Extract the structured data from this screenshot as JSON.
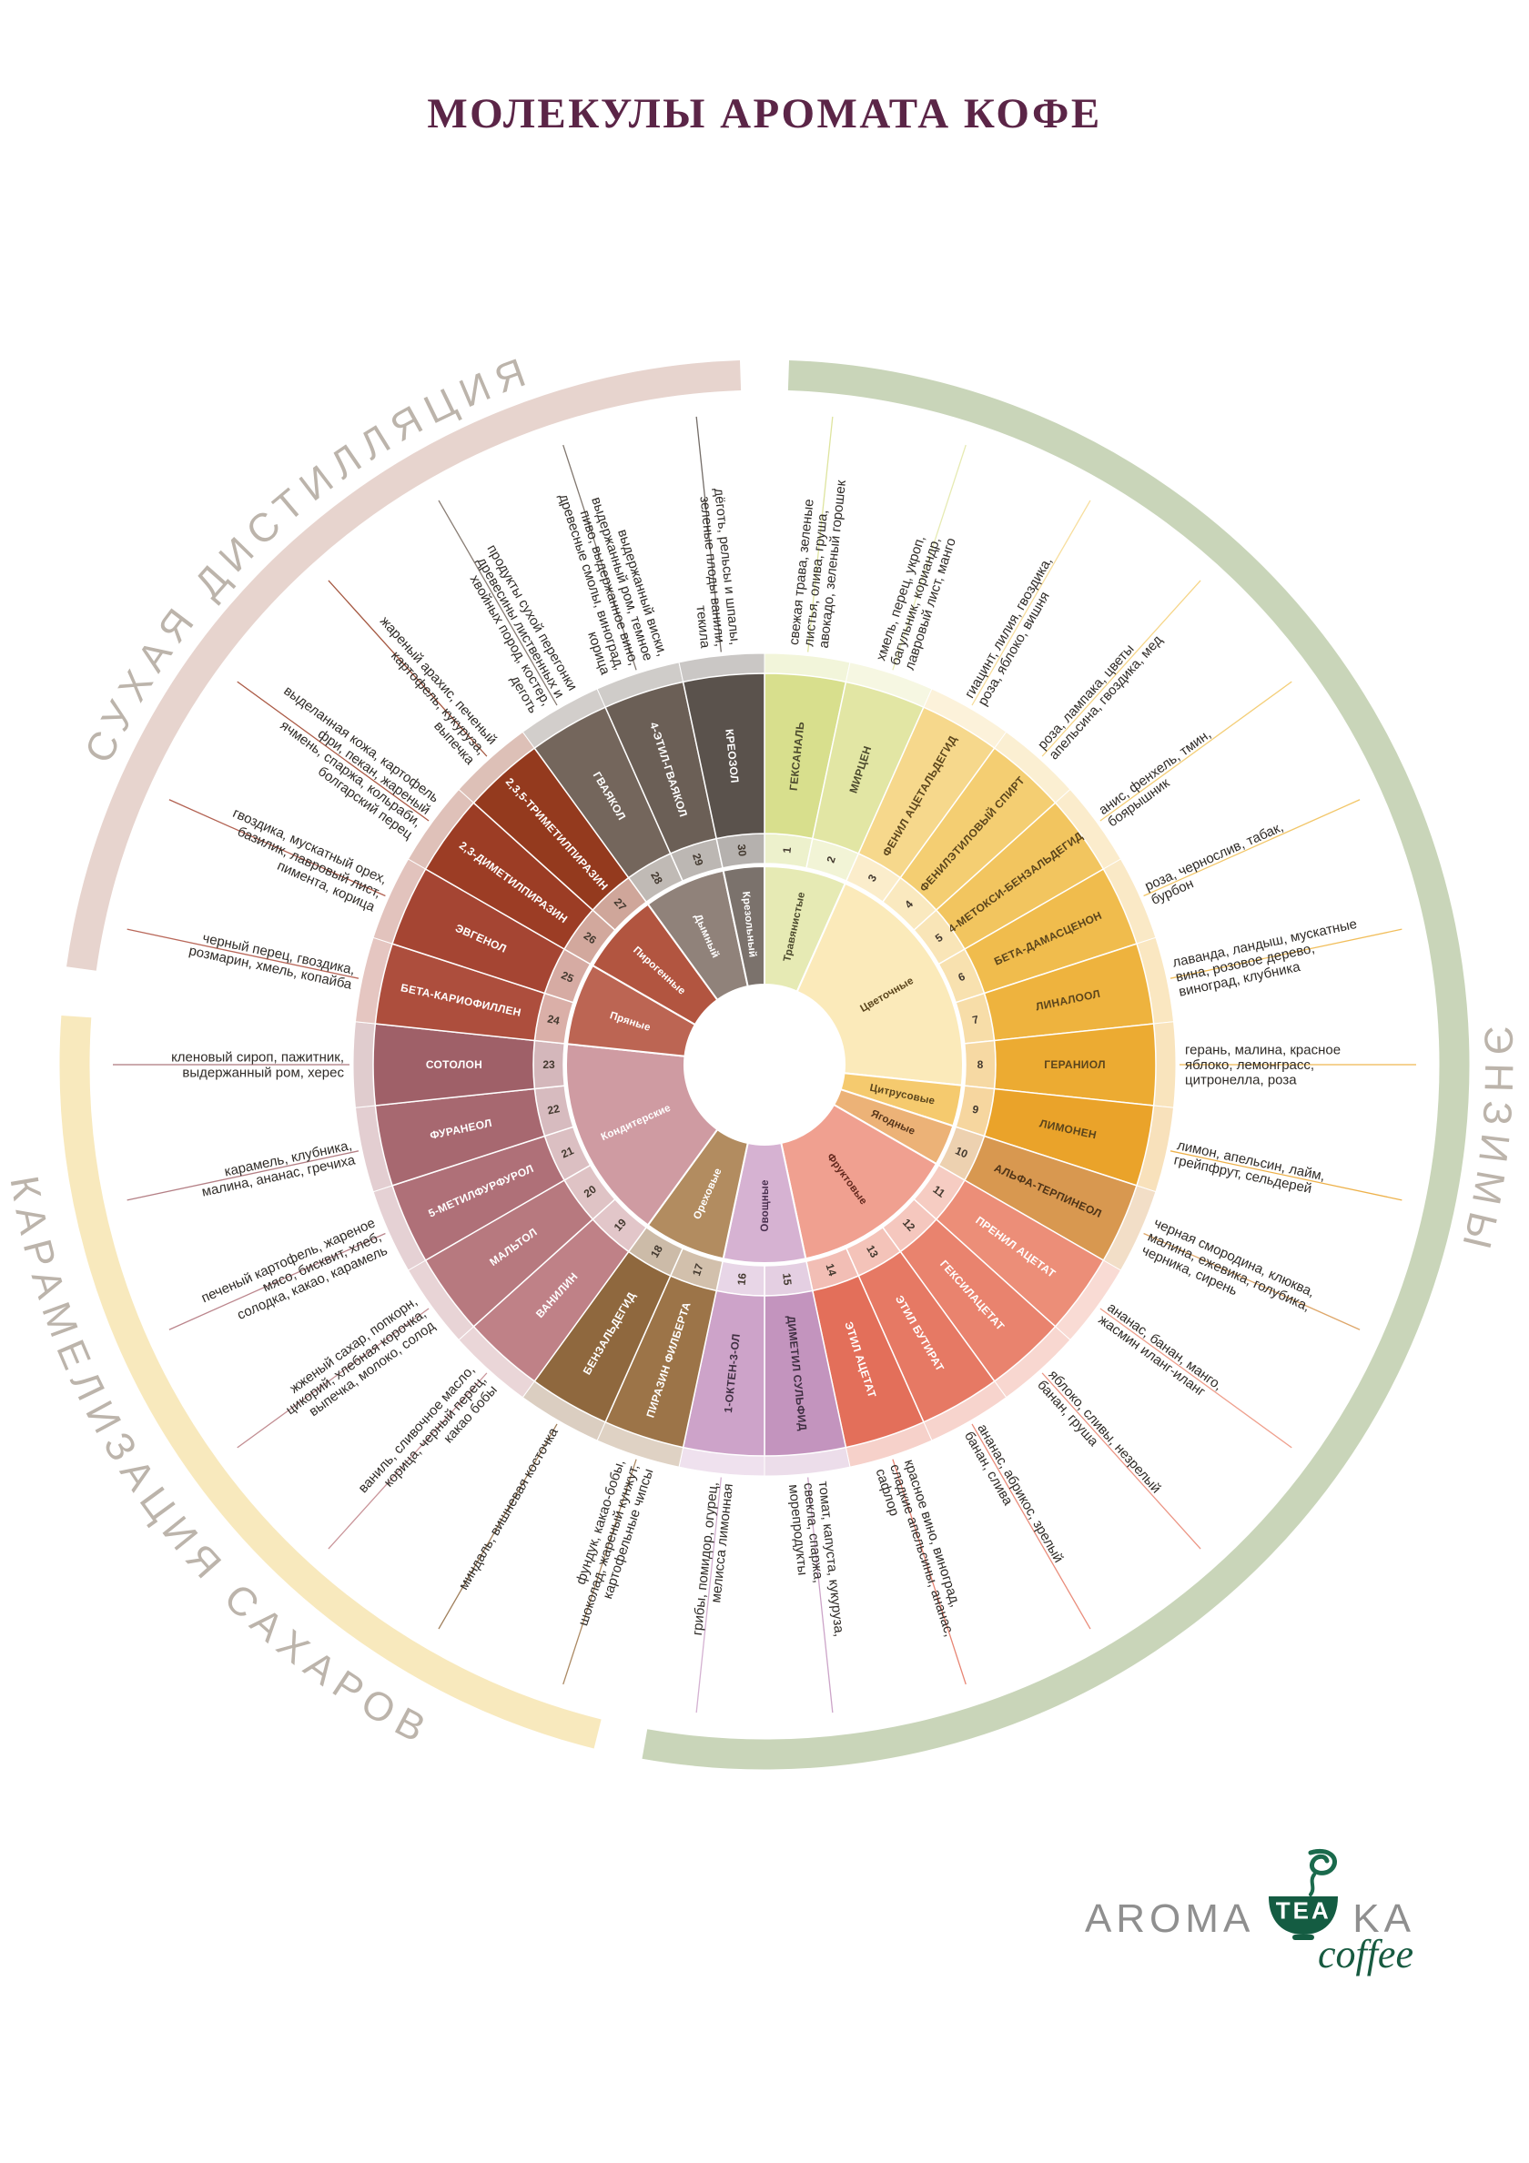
{
  "title": "МОЛЕКУЛЫ АРОМАТА КОФЕ",
  "logo": {
    "aroma": "AROMA",
    "tea": "TEA",
    "ka": "KA",
    "coffee": "coffee"
  },
  "processes": [
    {
      "name": "ЭНЗИМЫ",
      "color": "#c9d5b9",
      "segment_start": 1,
      "segment_end": 16
    },
    {
      "name": "КАРАМЕЛИЗАЦИЯ САХАРОВ",
      "color": "#f8e9bd",
      "segment_start": 17,
      "segment_end": 23
    },
    {
      "name": "СУХАЯ ДИСТИЛЛЯЦИЯ",
      "color": "#e7d4ce",
      "segment_start": 24,
      "segment_end": 30
    }
  ],
  "categories": [
    {
      "name": "Травянистые",
      "color": "#e6eab4",
      "label_color": "#4c4a2e"
    },
    {
      "name": "Цветочные",
      "color": "#fbeaba",
      "label_color": "#5b451c"
    },
    {
      "name": "Цитрусовые",
      "color": "#f5ca6e",
      "label_color": "#5b451c"
    },
    {
      "name": "Ягодные",
      "color": "#ecb277",
      "label_color": "#57351a"
    },
    {
      "name": "Фруктовые",
      "color": "#f0a090",
      "label_color": "#63281d"
    },
    {
      "name": "Овощные",
      "color": "#d6b2d2",
      "label_color": "#4a3050"
    },
    {
      "name": "Ореховые",
      "color": "#b28c60",
      "label_color": "#ffffff"
    },
    {
      "name": "Кондитерские",
      "color": "#cf9ba2",
      "label_color": "#ffffff"
    },
    {
      "name": "Пряные",
      "color": "#bc6553",
      "label_color": "#ffffff"
    },
    {
      "name": "Пирогенные",
      "color": "#b25540",
      "label_color": "#ffffff"
    },
    {
      "name": "Дымный",
      "color": "#90827a",
      "label_color": "#ffffff"
    },
    {
      "name": "Крезольный",
      "color": "#7b726c",
      "label_color": "#ffffff"
    }
  ],
  "molecules": [
    {
      "num": 1,
      "name": "ГЕКСАНАЛЬ",
      "category": "Травянистые",
      "color": "#d8df8d",
      "text_color": "#4c4a2e",
      "descriptor": "свежая трава, зеленые листья, олива, груша, авокадо, зеленый горошек"
    },
    {
      "num": 2,
      "name": "МИРЦЕН",
      "category": "Травянистые",
      "color": "#e2e6a4",
      "text_color": "#4c4a2e",
      "descriptor": "хмель, перец, укроп, багульник, кориандр, лавровый лист, манго"
    },
    {
      "num": 3,
      "name": "ФЕНИЛ АЦЕТАЛЬДЕГИД",
      "category": "Цветочные",
      "color": "#f6d88c",
      "text_color": "#5b451c",
      "descriptor": "гиацинт, лилия, гвоздика, роза, яблоко, вишня"
    },
    {
      "num": 4,
      "name": "ФЕНИЛЭТИЛОВЫЙ СПИРТ",
      "category": "Цветочные",
      "color": "#f4ce72",
      "text_color": "#5b451c",
      "descriptor": "роза, лампака, цветы апельсина, гвоздика, мед"
    },
    {
      "num": 5,
      "name": "4-МЕТОКСИ-БЕНЗАЛЬДЕГИД",
      "category": "Цветочные",
      "color": "#f2c55f",
      "text_color": "#5b451c",
      "descriptor": "анис, фенхель, тмин, боярышник"
    },
    {
      "num": 6,
      "name": "БЕТА-ДАМАСЦЕНОН",
      "category": "Цветочные",
      "color": "#f0bc4d",
      "text_color": "#5b451c",
      "descriptor": "роза, чернослив, табак, бурбон"
    },
    {
      "num": 7,
      "name": "ЛИНАЛООЛ",
      "category": "Цветочные",
      "color": "#eeb33e",
      "text_color": "#5b451c",
      "descriptor": "лаванда, ландыш, мускатные вина, розовое дерево, виноград, клубника"
    },
    {
      "num": 8,
      "name": "ГЕРАНИОЛ",
      "category": "Цветочные",
      "color": "#ecab32",
      "text_color": "#5b451c",
      "descriptor": "герань, малина, красное яблоко, лемонграсс, цитронелла, роза"
    },
    {
      "num": 9,
      "name": "ЛИМОНЕН",
      "category": "Цитрусовые",
      "color": "#eaa32a",
      "text_color": "#5b451c",
      "descriptor": "лимон, апельсин, лайм, грейпфрут, сельдерей"
    },
    {
      "num": 10,
      "name": "АЛЬФА-ТЕРПИНЕОЛ",
      "category": "Ягодные",
      "color": "#d89850",
      "text_color": "#4f3417",
      "descriptor": "черная смородина, клюква, малина, ежевика, голубика, черника, сирень"
    },
    {
      "num": 11,
      "name": "ПРЕНИЛ АЦЕТАТ",
      "category": "Фруктовые",
      "color": "#ec8e78",
      "text_color": "#ffffff",
      "descriptor": "ананас, банан, манго, жасмин иланг-иланг"
    },
    {
      "num": 12,
      "name": "ГЕКСИЛАЦЕТАТ",
      "category": "Фруктовые",
      "color": "#e9836e",
      "text_color": "#ffffff",
      "descriptor": "яблоко, сливы, незрелый банан, груша"
    },
    {
      "num": 13,
      "name": "ЭТИЛ БУТИРАТ",
      "category": "Фруктовые",
      "color": "#e67964",
      "text_color": "#ffffff",
      "descriptor": "ананас, абрикос, зрелый банан, слива"
    },
    {
      "num": 14,
      "name": "ЭТИЛ АЦЕТАТ",
      "category": "Фруктовые",
      "color": "#e36f5a",
      "text_color": "#ffffff",
      "descriptor": "красное вино, виноград, сладкие апельсины, ананас, сафлор"
    },
    {
      "num": 15,
      "name": "ДИМЕТИЛ СУЛЬФИД",
      "category": "Овощные",
      "color": "#c394be",
      "text_color": "#3f2f42",
      "descriptor": "томат, капуста, кукуруза, свекла, спаржа, морепродукты"
    },
    {
      "num": 16,
      "name": "1-ОКТЕН-3-ОЛ",
      "category": "Овощные",
      "color": "#cda3c9",
      "text_color": "#3f2f42",
      "descriptor": "грибы, помидор, огурец, мелисса лимонная"
    },
    {
      "num": 17,
      "name": "ПИРАЗИН ФИЛБЕРТА",
      "category": "Ореховые",
      "color": "#9c7448",
      "text_color": "#ffffff",
      "descriptor": "фундук, какао-бобы, шоколад, жареный кунжут, картофельные чипсы"
    },
    {
      "num": 18,
      "name": "БЕНЗАЛЬДЕГИД",
      "category": "Ореховые",
      "color": "#8f683e",
      "text_color": "#ffffff",
      "descriptor": "миндаль, вишневая косточка"
    },
    {
      "num": 19,
      "name": "ВАНИЛИН",
      "category": "Кондитерские",
      "color": "#bf8187",
      "text_color": "#ffffff",
      "descriptor": "ваниль, сливочное масло, корица, черный перец, какао бобы"
    },
    {
      "num": 20,
      "name": "МАЛЬТОЛ",
      "category": "Кондитерские",
      "color": "#b7797f",
      "text_color": "#ffffff",
      "descriptor": "жженый сахар, попкорн, цикорий, хлебная корочка, выпечка, молоко, солод"
    },
    {
      "num": 21,
      "name": "5-МЕТИЛФУРФУРОЛ",
      "category": "Кондитерские",
      "color": "#af7078",
      "text_color": "#ffffff",
      "descriptor": "печеный картофель, жареное мясо, бисквит, хлеб, солодка, какао, карамель"
    },
    {
      "num": 22,
      "name": "ФУРАНЕОЛ",
      "category": "Кондитерские",
      "color": "#a76870",
      "text_color": "#ffffff",
      "descriptor": "карамель, клубника, малина, ананас, гречиха"
    },
    {
      "num": 23,
      "name": "СОТОЛОН",
      "category": "Кондитерские",
      "color": "#9f6068",
      "text_color": "#ffffff",
      "descriptor": "кленовый сироп, пажитник, выдержанный ром, херес"
    },
    {
      "num": 24,
      "name": "БЕТА-КАРИОФИЛЛЕН",
      "category": "Пряные",
      "color": "#ad4e3d",
      "text_color": "#ffffff",
      "descriptor": "черный перец, гвоздика, розмарин, хмель, копайба"
    },
    {
      "num": 25,
      "name": "ЭВГЕНОЛ",
      "category": "Пряные",
      "color": "#a54533",
      "text_color": "#ffffff",
      "descriptor": "гвоздика, мускатный орех, базилик, лавровый лист, пимента, корица"
    },
    {
      "num": 26,
      "name": "2,3-ДИМЕТИЛПИРАЗИН",
      "category": "Пирогенные",
      "color": "#9c3d25",
      "text_color": "#ffffff",
      "descriptor": "выделанная кожа, картофель фри, пекан, жареный ячмень, спаржа, кольраби, болгарский перец"
    },
    {
      "num": 27,
      "name": "2,3,5-ТРИМЕТИЛПИРАЗИН",
      "category": "Пирогенные",
      "color": "#943a1e",
      "text_color": "#ffffff",
      "descriptor": "жареный арахис, печеный картофель, кукуруза, выпечка"
    },
    {
      "num": 28,
      "name": "ГВАЯКОЛ",
      "category": "Дымный",
      "color": "#74665c",
      "text_color": "#ffffff",
      "descriptor": "продукты сухой перегонки древесины лиственных и хвойных пород, костер, деготь"
    },
    {
      "num": 29,
      "name": "4-ЭТИЛ-ГВАЯКОЛ",
      "category": "Дымный",
      "color": "#6b5f56",
      "text_color": "#ffffff",
      "descriptor": "выдержанный виски, выдержанный ром, темное пиво, выдержанное вино, древесные смолы, виноград, корица"
    },
    {
      "num": 30,
      "name": "КРЕОЗОЛ",
      "category": "Крезольный",
      "color": "#5a524c",
      "text_color": "#ffffff",
      "descriptor": "дёготь, рельсы и шпалы, зеленые плоды ванили, текила"
    }
  ]
}
